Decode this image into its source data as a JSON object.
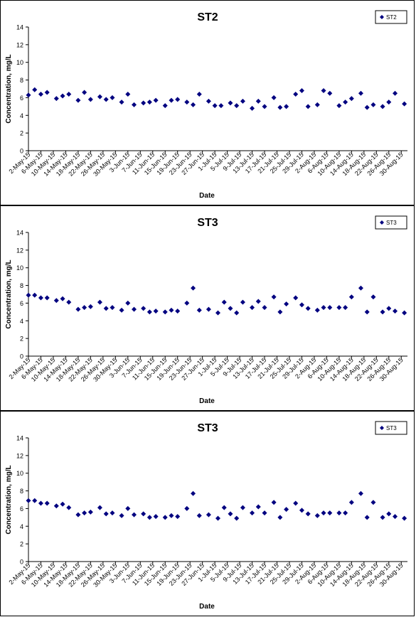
{
  "chart_data": [
    {
      "type": "scatter",
      "title": "ST2",
      "xlabel": "Date",
      "ylabel": "Concentration, mg/L",
      "ylim": [
        0,
        14
      ],
      "yticks": [
        0,
        2,
        4,
        6,
        8,
        10,
        12,
        14
      ],
      "xlim": [
        "2-May-15",
        "1-Sep-15"
      ],
      "xticks": [
        "2-May-15",
        "6-May-15",
        "10-May-15",
        "14-May-15",
        "18-May-15",
        "22-May-15",
        "26-May-15",
        "30-May-15",
        "3-Jun-15",
        "7-Jun-15",
        "11-Jun-15",
        "15-Jun-15",
        "19-Jun-15",
        "23-Jun-15",
        "27-Jun-15",
        "1-Jul-15",
        "5-Jul-15",
        "9-Jul-15",
        "13-Jul-15",
        "17-Jul-15",
        "21-Jul-15",
        "25-Jul-15",
        "29-Jul-15",
        "2-Aug-15",
        "6-Aug-15",
        "10-Aug-15",
        "14-Aug-15",
        "18-Aug-15",
        "22-Aug-15",
        "26-Aug-15",
        "30-Aug-15"
      ],
      "grid": false,
      "legend": "top-right",
      "color": "#000080",
      "series": [
        {
          "name": "ST2",
          "x": [
            "2-May-15",
            "4-May-15",
            "6-May-15",
            "8-May-15",
            "11-May-15",
            "13-May-15",
            "15-May-15",
            "18-May-15",
            "20-May-15",
            "22-May-15",
            "25-May-15",
            "27-May-15",
            "29-May-15",
            "1-Jun-15",
            "3-Jun-15",
            "5-Jun-15",
            "8-Jun-15",
            "10-Jun-15",
            "12-Jun-15",
            "15-Jun-15",
            "17-Jun-15",
            "19-Jun-15",
            "22-Jun-15",
            "24-Jun-15",
            "26-Jun-15",
            "29-Jun-15",
            "1-Jul-15",
            "3-Jul-15",
            "6-Jul-15",
            "8-Jul-15",
            "10-Jul-15",
            "13-Jul-15",
            "15-Jul-15",
            "17-Jul-15",
            "20-Jul-15",
            "22-Jul-15",
            "24-Jul-15",
            "27-Jul-15",
            "29-Jul-15",
            "31-Jul-15",
            "3-Aug-15",
            "5-Aug-15",
            "7-Aug-15",
            "10-Aug-15",
            "12-Aug-15",
            "14-Aug-15",
            "17-Aug-15",
            "19-Aug-15",
            "21-Aug-15",
            "24-Aug-15",
            "26-Aug-15",
            "28-Aug-15",
            "31-Aug-15"
          ],
          "y": [
            6.3,
            6.9,
            6.4,
            6.6,
            5.9,
            6.2,
            6.4,
            5.7,
            6.6,
            5.8,
            6.1,
            5.8,
            6.0,
            5.5,
            6.4,
            5.2,
            5.4,
            5.5,
            5.7,
            5.1,
            5.7,
            5.8,
            5.5,
            5.2,
            6.4,
            5.6,
            5.1,
            5.1,
            5.4,
            5.1,
            5.6,
            4.8,
            5.6,
            5.0,
            6.0,
            4.9,
            5.0,
            6.4,
            6.8,
            5.0,
            5.2,
            6.8,
            6.5,
            5.1,
            5.5,
            5.9,
            6.5,
            4.9,
            5.2,
            5.0,
            5.5,
            6.5,
            5.3
          ]
        }
      ]
    },
    {
      "type": "scatter",
      "title": "ST3",
      "xlabel": "Date",
      "ylabel": "Concentration, mg/L",
      "ylim": [
        0,
        14
      ],
      "yticks": [
        0,
        2,
        4,
        6,
        8,
        10,
        12,
        14
      ],
      "xlim": [
        "2-May-15",
        "1-Sep-15"
      ],
      "xticks": [
        "2-May-15",
        "6-May-15",
        "10-May-15",
        "14-May-15",
        "18-May-15",
        "22-May-15",
        "26-May-15",
        "30-May-15",
        "3-Jun-15",
        "7-Jun-15",
        "11-Jun-15",
        "15-Jun-15",
        "19-Jun-15",
        "23-Jun-15",
        "27-Jun-15",
        "1-Jul-15",
        "5-Jul-15",
        "9-Jul-15",
        "13-Jul-15",
        "17-Jul-15",
        "21-Jul-15",
        "25-Jul-15",
        "29-Jul-15",
        "2-Aug-15",
        "6-Aug-15",
        "10-Aug-15",
        "14-Aug-15",
        "18-Aug-15",
        "22-Aug-15",
        "26-Aug-15",
        "30-Aug-15"
      ],
      "grid": false,
      "legend": "top-right",
      "color": "#000080",
      "series": [
        {
          "name": "ST3",
          "x": [
            "2-May-15",
            "4-May-15",
            "6-May-15",
            "8-May-15",
            "11-May-15",
            "13-May-15",
            "15-May-15",
            "18-May-15",
            "20-May-15",
            "22-May-15",
            "25-May-15",
            "27-May-15",
            "29-May-15",
            "1-Jun-15",
            "3-Jun-15",
            "5-Jun-15",
            "8-Jun-15",
            "10-Jun-15",
            "12-Jun-15",
            "15-Jun-15",
            "17-Jun-15",
            "19-Jun-15",
            "22-Jun-15",
            "24-Jun-15",
            "26-Jun-15",
            "29-Jun-15",
            "2-Jul-15",
            "4-Jul-15",
            "6-Jul-15",
            "8-Jul-15",
            "10-Jul-15",
            "13-Jul-15",
            "15-Jul-15",
            "17-Jul-15",
            "20-Jul-15",
            "22-Jul-15",
            "24-Jul-15",
            "27-Jul-15",
            "29-Jul-15",
            "31-Jul-15",
            "3-Aug-15",
            "5-Aug-15",
            "7-Aug-15",
            "10-Aug-15",
            "12-Aug-15",
            "14-Aug-15",
            "17-Aug-15",
            "19-Aug-15",
            "21-Aug-15",
            "24-Aug-15",
            "26-Aug-15",
            "28-Aug-15",
            "31-Aug-15"
          ],
          "y": [
            6.9,
            6.9,
            6.6,
            6.6,
            6.3,
            6.5,
            6.1,
            5.3,
            5.5,
            5.6,
            6.1,
            5.4,
            5.5,
            5.2,
            6.0,
            5.3,
            5.4,
            5.0,
            5.1,
            5.0,
            5.2,
            5.1,
            6.0,
            7.7,
            5.2,
            5.3,
            4.9,
            6.1,
            5.4,
            4.9,
            6.1,
            5.5,
            6.2,
            5.5,
            6.7,
            5.0,
            5.9,
            6.6,
            5.8,
            5.4,
            5.2,
            5.5,
            5.5,
            5.5,
            5.5,
            6.7,
            7.7,
            5.0,
            6.7,
            5.0,
            5.4,
            5.1,
            4.9
          ]
        }
      ]
    },
    {
      "type": "scatter",
      "title": "ST3",
      "xlabel": "Date",
      "ylabel": "Concentration, mg/L",
      "ylim": [
        0,
        14
      ],
      "yticks": [
        0,
        2,
        4,
        6,
        8,
        10,
        12,
        14
      ],
      "xlim": [
        "2-May-15",
        "1-Sep-15"
      ],
      "xticks": [
        "2-May-15",
        "6-May-15",
        "10-May-15",
        "14-May-15",
        "18-May-15",
        "22-May-15",
        "26-May-15",
        "30-May-15",
        "3-Jun-15",
        "7-Jun-15",
        "11-Jun-15",
        "15-Jun-15",
        "19-Jun-15",
        "23-Jun-15",
        "27-Jun-15",
        "1-Jul-15",
        "5-Jul-15",
        "9-Jul-15",
        "13-Jul-15",
        "17-Jul-15",
        "21-Jul-15",
        "25-Jul-15",
        "29-Jul-15",
        "2-Aug-15",
        "6-Aug-15",
        "10-Aug-15",
        "14-Aug-15",
        "18-Aug-15",
        "22-Aug-15",
        "26-Aug-15",
        "30-Aug-15"
      ],
      "grid": false,
      "legend": "top-right",
      "color": "#000080",
      "series": [
        {
          "name": "ST3",
          "x": [
            "2-May-15",
            "4-May-15",
            "6-May-15",
            "8-May-15",
            "11-May-15",
            "13-May-15",
            "15-May-15",
            "18-May-15",
            "20-May-15",
            "22-May-15",
            "25-May-15",
            "27-May-15",
            "29-May-15",
            "1-Jun-15",
            "3-Jun-15",
            "5-Jun-15",
            "8-Jun-15",
            "10-Jun-15",
            "12-Jun-15",
            "15-Jun-15",
            "17-Jun-15",
            "19-Jun-15",
            "22-Jun-15",
            "24-Jun-15",
            "26-Jun-15",
            "29-Jun-15",
            "2-Jul-15",
            "4-Jul-15",
            "6-Jul-15",
            "8-Jul-15",
            "10-Jul-15",
            "13-Jul-15",
            "15-Jul-15",
            "17-Jul-15",
            "20-Jul-15",
            "22-Jul-15",
            "24-Jul-15",
            "27-Jul-15",
            "29-Jul-15",
            "31-Jul-15",
            "3-Aug-15",
            "5-Aug-15",
            "7-Aug-15",
            "10-Aug-15",
            "12-Aug-15",
            "14-Aug-15",
            "17-Aug-15",
            "19-Aug-15",
            "21-Aug-15",
            "24-Aug-15",
            "26-Aug-15",
            "28-Aug-15",
            "31-Aug-15"
          ],
          "y": [
            6.9,
            6.9,
            6.6,
            6.6,
            6.3,
            6.5,
            6.1,
            5.3,
            5.5,
            5.6,
            6.1,
            5.4,
            5.5,
            5.2,
            6.0,
            5.3,
            5.4,
            5.0,
            5.1,
            5.0,
            5.2,
            5.1,
            6.0,
            7.7,
            5.2,
            5.3,
            4.9,
            6.1,
            5.4,
            4.9,
            6.1,
            5.5,
            6.2,
            5.5,
            6.7,
            5.0,
            5.9,
            6.6,
            5.8,
            5.4,
            5.2,
            5.5,
            5.5,
            5.5,
            5.5,
            6.7,
            7.7,
            5.0,
            6.7,
            5.0,
            5.4,
            5.1,
            4.9
          ]
        }
      ]
    }
  ]
}
